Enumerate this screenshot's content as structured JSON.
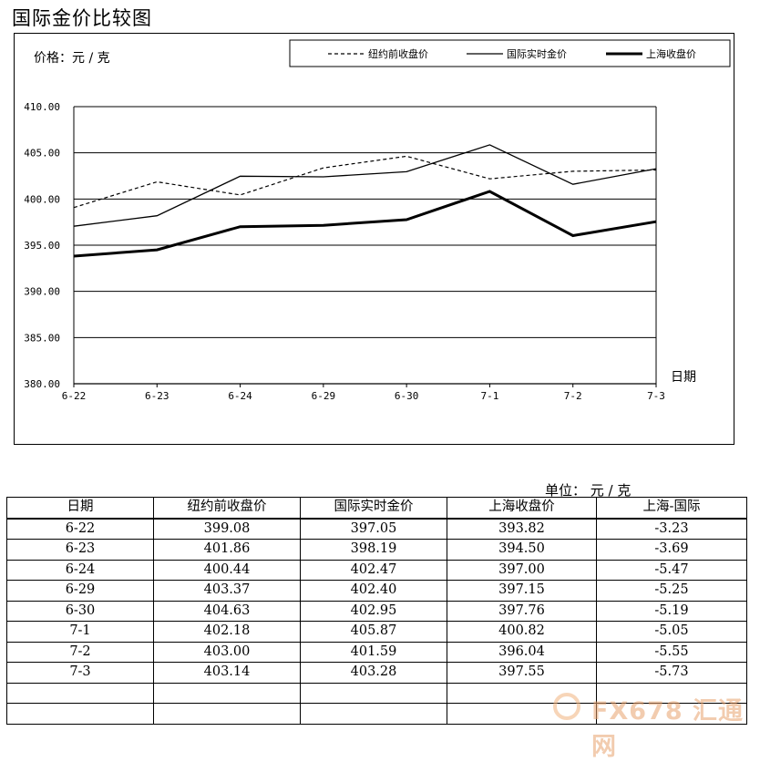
{
  "page": {
    "title": "国际金价比较图"
  },
  "chart_data": {
    "type": "line",
    "title": "国际金价比较图",
    "ylabel": "价格：元 / 克",
    "xlabel": "日期",
    "categories": [
      "6-22",
      "6-23",
      "6-24",
      "6-29",
      "6-30",
      "7-1",
      "7-2",
      "7-3"
    ],
    "ylim": [
      380,
      410
    ],
    "yticks": [
      "380.00",
      "385.00",
      "390.00",
      "395.00",
      "400.00",
      "405.00",
      "410.00"
    ],
    "grid": "horizontal",
    "legend_position": "top",
    "series": [
      {
        "name": "纽约前收盘价",
        "style": "dashed",
        "color": "#000000",
        "values": [
          399.08,
          401.86,
          400.44,
          403.37,
          404.63,
          402.18,
          403.0,
          403.14
        ]
      },
      {
        "name": "国际实时金价",
        "style": "solid",
        "color": "#000000",
        "values": [
          397.05,
          398.19,
          402.47,
          402.4,
          402.95,
          405.87,
          401.59,
          403.28
        ]
      },
      {
        "name": "上海收盘价",
        "style": "bold",
        "color": "#000000",
        "values": [
          393.82,
          394.5,
          397.0,
          397.15,
          397.76,
          400.82,
          396.04,
          397.55
        ]
      }
    ]
  },
  "table": {
    "unit": "单位：  元 / 克",
    "headers": [
      "日期",
      "纽约前收盘价",
      "国际实时金价",
      "上海收盘价",
      "上海-国际"
    ],
    "rows": [
      [
        "6-22",
        "399.08",
        "397.05",
        "393.82",
        "-3.23"
      ],
      [
        "6-23",
        "401.86",
        "398.19",
        "394.50",
        "-3.69"
      ],
      [
        "6-24",
        "400.44",
        "402.47",
        "397.00",
        "-5.47"
      ],
      [
        "6-29",
        "403.37",
        "402.40",
        "397.15",
        "-5.25"
      ],
      [
        "6-30",
        "404.63",
        "402.95",
        "397.76",
        "-5.19"
      ],
      [
        "7-1",
        "402.18",
        "405.87",
        "400.82",
        "-5.05"
      ],
      [
        "7-2",
        "403.00",
        "401.59",
        "396.04",
        "-5.55"
      ],
      [
        "7-3",
        "403.14",
        "403.28",
        "397.55",
        "-5.73"
      ],
      [
        "",
        "",
        "",
        "",
        ""
      ],
      [
        "",
        "",
        "",
        "",
        ""
      ]
    ]
  },
  "watermark": {
    "text": "FX678 汇通网",
    "icon": "fx678-logo-icon"
  }
}
